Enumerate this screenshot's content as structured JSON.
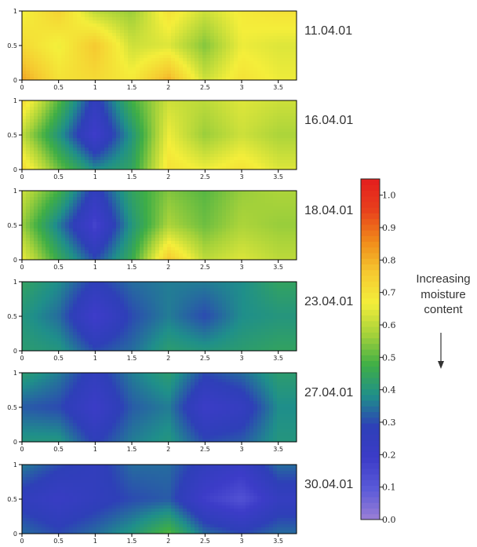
{
  "chart_data": {
    "type": "heatmap",
    "title": "",
    "xlabel": "",
    "ylabel": "",
    "xlim": [
      0,
      3.75
    ],
    "ylim": [
      0,
      1
    ],
    "x_ticks": [
      "0",
      "0.5",
      "1",
      "1.5",
      "2",
      "2.5",
      "3",
      "3.5"
    ],
    "y_ticks": [
      "0",
      "0.5",
      "1"
    ],
    "colorbar": {
      "ticks": [
        "0.0",
        "0.1",
        "0.2",
        "0.3",
        "0.4",
        "0.5",
        "0.6",
        "0.7",
        "0.8",
        "0.9",
        "1.0"
      ],
      "range": [
        0,
        1.05
      ],
      "colors": [
        "#9b7fd6",
        "#5a5ad8",
        "#3c3cc8",
        "#2e3fb8",
        "#1f8f8a",
        "#3fae46",
        "#a6d23a",
        "#f4ee3a",
        "#f5c830",
        "#f08a1a",
        "#e8401c",
        "#e41e1e"
      ],
      "annotation": [
        "Increasing",
        "moisture",
        "content"
      ],
      "arrow": "down-arrow"
    },
    "panels": [
      {
        "label": "11.04.01",
        "x": [
          0,
          0.5,
          1,
          1.5,
          2,
          2.5,
          3,
          3.5
        ],
        "y": [
          0,
          0.5,
          1
        ],
        "z": [
          [
            0.82,
            0.7,
            0.72,
            0.68,
            0.8,
            0.62,
            0.7,
            0.66
          ],
          [
            0.72,
            0.66,
            0.76,
            0.62,
            0.64,
            0.54,
            0.66,
            0.64
          ],
          [
            0.66,
            0.74,
            0.6,
            0.56,
            0.7,
            0.62,
            0.68,
            0.7
          ]
        ]
      },
      {
        "label": "16.04.01",
        "x": [
          0,
          0.5,
          1,
          1.5,
          2,
          2.5,
          3,
          3.5
        ],
        "y": [
          0,
          0.5,
          1
        ],
        "z": [
          [
            0.72,
            0.52,
            0.38,
            0.44,
            0.7,
            0.66,
            0.7,
            0.64
          ],
          [
            0.6,
            0.4,
            0.18,
            0.4,
            0.66,
            0.56,
            0.62,
            0.58
          ],
          [
            0.72,
            0.5,
            0.26,
            0.48,
            0.62,
            0.6,
            0.64,
            0.62
          ]
        ]
      },
      {
        "label": "18.04.01",
        "x": [
          0,
          0.5,
          1,
          1.5,
          2,
          2.5,
          3,
          3.5
        ],
        "y": [
          0,
          0.5,
          1
        ],
        "z": [
          [
            0.66,
            0.46,
            0.3,
            0.46,
            0.76,
            0.6,
            0.64,
            0.6
          ],
          [
            0.56,
            0.36,
            0.16,
            0.4,
            0.58,
            0.52,
            0.58,
            0.56
          ],
          [
            0.62,
            0.48,
            0.26,
            0.44,
            0.54,
            0.5,
            0.56,
            0.58
          ]
        ]
      },
      {
        "label": "23.04.01",
        "x": [
          0,
          0.5,
          1,
          1.5,
          2,
          2.5,
          3,
          3.5
        ],
        "y": [
          0,
          0.5,
          1
        ],
        "z": [
          [
            0.42,
            0.4,
            0.3,
            0.34,
            0.42,
            0.4,
            0.42,
            0.44
          ],
          [
            0.4,
            0.34,
            0.18,
            0.3,
            0.36,
            0.3,
            0.38,
            0.4
          ],
          [
            0.44,
            0.38,
            0.28,
            0.34,
            0.36,
            0.36,
            0.38,
            0.44
          ]
        ]
      },
      {
        "label": "27.04.01",
        "x": [
          0,
          0.5,
          1,
          1.5,
          2,
          2.5,
          3,
          3.5
        ],
        "y": [
          0,
          0.5,
          1
        ],
        "z": [
          [
            0.4,
            0.4,
            0.28,
            0.36,
            0.4,
            0.3,
            0.32,
            0.4
          ],
          [
            0.32,
            0.3,
            0.2,
            0.32,
            0.36,
            0.2,
            0.24,
            0.38
          ],
          [
            0.42,
            0.36,
            0.26,
            0.36,
            0.42,
            0.3,
            0.34,
            0.42
          ]
        ]
      },
      {
        "label": "30.04.01",
        "x": [
          0,
          0.5,
          1,
          1.5,
          2,
          2.5,
          3,
          3.5
        ],
        "y": [
          0,
          0.5,
          1
        ],
        "z": [
          [
            0.34,
            0.3,
            0.34,
            0.4,
            0.5,
            0.34,
            0.3,
            0.34
          ],
          [
            0.26,
            0.22,
            0.26,
            0.3,
            0.32,
            0.18,
            0.12,
            0.24
          ],
          [
            0.36,
            0.3,
            0.26,
            0.34,
            0.34,
            0.26,
            0.22,
            0.34
          ]
        ]
      }
    ]
  }
}
